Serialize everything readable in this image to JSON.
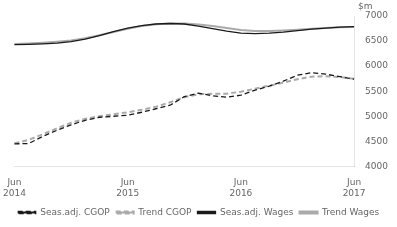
{
  "chart_data": {
    "type": "line",
    "categories": [
      "Jun\n2014",
      null,
      null,
      null,
      null,
      null,
      null,
      null,
      "Jun\n2015",
      null,
      null,
      null,
      null,
      null,
      null,
      null,
      "Jun\n2016",
      null,
      null,
      null,
      null,
      null,
      null,
      null,
      "Jun\n2017"
    ],
    "ylabel": "$m",
    "ylim": [
      4000,
      7000
    ],
    "yticks": [
      4000,
      4500,
      5000,
      5500,
      6000,
      6500,
      7000
    ],
    "grid": false,
    "legend": "bottom",
    "series": [
      {
        "name": "Seas.adj. CGOP",
        "color": "#1a1a1a",
        "line_style": "dashed",
        "values": [
          4450,
          4455,
          4600,
          4720,
          4830,
          4920,
          4980,
          5000,
          5020,
          5080,
          5150,
          5220,
          5390,
          5460,
          5410,
          5380,
          5420,
          5520,
          5600,
          5700,
          5820,
          5870,
          5840,
          5790,
          5740
        ]
      },
      {
        "name": "Trend CGOP",
        "color": "#aaaaaa",
        "line_style": "dashed",
        "values": [
          4460,
          4530,
          4640,
          4760,
          4870,
          4950,
          5000,
          5040,
          5080,
          5130,
          5190,
          5280,
          5380,
          5440,
          5450,
          5450,
          5490,
          5550,
          5610,
          5670,
          5740,
          5790,
          5800,
          5780,
          5750
        ]
      },
      {
        "name": "Seas.adj. Wages",
        "color": "#1a1a1a",
        "line_style": "solid",
        "values": [
          6430,
          6435,
          6445,
          6460,
          6490,
          6540,
          6610,
          6690,
          6760,
          6810,
          6840,
          6850,
          6840,
          6800,
          6750,
          6700,
          6660,
          6650,
          6660,
          6680,
          6710,
          6740,
          6760,
          6780,
          6790
        ]
      },
      {
        "name": "Trend Wages",
        "color": "#aaaaaa",
        "line_style": "solid",
        "values": [
          6440,
          6450,
          6465,
          6485,
          6510,
          6555,
          6615,
          6680,
          6745,
          6800,
          6835,
          6850,
          6848,
          6832,
          6800,
          6760,
          6720,
          6700,
          6700,
          6710,
          6725,
          6745,
          6762,
          6775,
          6782
        ]
      }
    ]
  }
}
